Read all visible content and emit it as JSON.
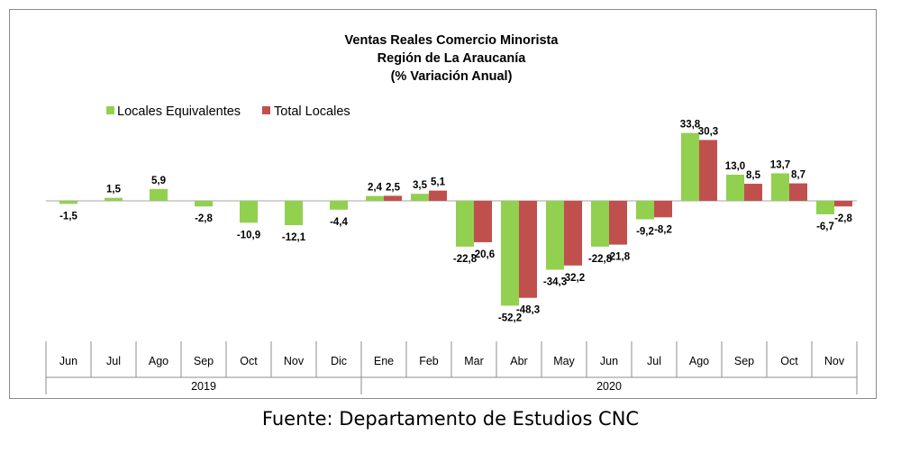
{
  "chart_data": {
    "type": "bar",
    "title": [
      "Ventas Reales Comercio Minorista",
      "Región de La Araucanía",
      "(% Variación Anual)"
    ],
    "categories": [
      "Jun",
      "Jul",
      "Ago",
      "Sep",
      "Oct",
      "Nov",
      "Dic",
      "Ene",
      "Feb",
      "Mar",
      "Abr",
      "May",
      "Jun",
      "Jul",
      "Ago",
      "Sep",
      "Oct",
      "Nov"
    ],
    "year_groups": [
      {
        "label": "2019",
        "start": 0,
        "end": 6
      },
      {
        "label": "2020",
        "start": 7,
        "end": 17
      }
    ],
    "series": [
      {
        "name": "Locales Equivalentes",
        "color": "#92d050",
        "values": [
          -1.5,
          1.5,
          5.9,
          -2.8,
          -10.9,
          -12.1,
          -4.4,
          2.4,
          3.5,
          -22.8,
          -52.2,
          -34.3,
          -22.8,
          -9.2,
          33.8,
          13.0,
          13.7,
          -6.7
        ],
        "labels": [
          "-1,5",
          "1,5",
          "5,9",
          "-2,8",
          "-10,9",
          "-12,1",
          "-4,4",
          "2,4",
          "3,5",
          "-22,8",
          "-52,2",
          "-34,3",
          "-22,8",
          "-9,2",
          "33,8",
          "13,0",
          "13,7",
          "-6,7"
        ]
      },
      {
        "name": "Total Locales",
        "color": "#c0504d",
        "values": [
          null,
          null,
          null,
          null,
          null,
          null,
          null,
          2.5,
          5.1,
          -20.6,
          -48.3,
          -32.2,
          -21.8,
          -8.2,
          30.3,
          8.5,
          8.7,
          -2.8
        ],
        "labels": [
          "",
          "",
          "",
          "",
          "",
          "",
          "",
          "2,5",
          "5,1",
          "-20,6",
          "-48,3",
          "-32,2",
          "-21,8",
          "-8,2",
          "30,3",
          "8,5",
          "8,7",
          "-2,8"
        ]
      }
    ],
    "legend_position": "top-left",
    "grid": false
  },
  "source_note": "Fuente: Departamento de Estudios CNC"
}
